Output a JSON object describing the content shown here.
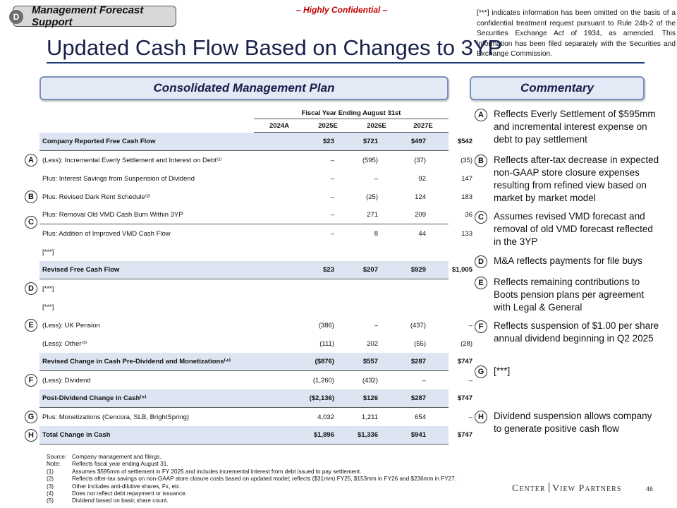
{
  "section_tag": {
    "letter": "D",
    "label": "Management Forecast Support"
  },
  "confidential": "– Highly Confidential –",
  "omission_note": "[***] indicates information has been omitted on the basis of a confidential treatment request pursuant to Rule 24b-2 of the Securities Exchange Act of 1934, as amended. This information has been filed separately with the Securities and Exchange Commission.",
  "title": "Updated Cash Flow Based on Changes to 3YP",
  "left_panel_header": "Consolidated Management Plan",
  "right_panel_header": "Commentary",
  "table": {
    "period_header": "Fiscal Year Ending August 31st",
    "years": [
      "2024A",
      "2025E",
      "2026E",
      "2027E"
    ],
    "rows": [
      {
        "label": "Company Reported Free Cash Flow",
        "values": [
          "$23",
          "$721",
          "$497",
          "$542"
        ]
      },
      {
        "label": "(Less): Incremental Everly Settlement and Interest on Debt⁽¹⁾",
        "badge": "A",
        "values": [
          "–",
          "(595)",
          "(37)",
          "(35)"
        ]
      },
      {
        "label": "Plus: Interest Savings from Suspension of Dividend",
        "values": [
          "–",
          "–",
          "92",
          "147"
        ]
      },
      {
        "label": "Plus: Revised Dark Rent Schedule⁽²⁾",
        "badge": "B",
        "values": [
          "–",
          "(25)",
          "124",
          "183"
        ]
      },
      {
        "label": "Plus: Removal Old VMD Cash Burn Within 3YP",
        "values": [
          "–",
          "271",
          "209",
          "36"
        ]
      },
      {
        "label": "Plus: Addition of Improved VMD Cash Flow",
        "values": [
          "–",
          "8",
          "44",
          "133"
        ]
      },
      {
        "label": "[***]",
        "values": [
          "",
          "",
          "",
          ""
        ]
      },
      {
        "label": "Revised Free Cash Flow",
        "values": [
          "$23",
          "$207",
          "$929",
          "$1,005"
        ]
      },
      {
        "label": "[***]",
        "badge": "D",
        "values": [
          "",
          "",
          "",
          ""
        ]
      },
      {
        "label": "[***]",
        "values": [
          "",
          "",
          "",
          ""
        ]
      },
      {
        "label": "(Less): UK Pension",
        "badge": "E",
        "values": [
          "(386)",
          "–",
          "(437)",
          "–"
        ]
      },
      {
        "label": "(Less): Other⁽³⁾",
        "values": [
          "(111)",
          "202",
          "(55)",
          "(28)"
        ]
      },
      {
        "label": "Revised Change in Cash Pre-Dividend and Monetizations⁽⁴⁾",
        "values": [
          "($876)",
          "$557",
          "$287",
          "$747"
        ]
      },
      {
        "label": "(Less): Dividend",
        "badge": "F",
        "values": [
          "(1,260)",
          "(432)",
          "–",
          "–"
        ]
      },
      {
        "label": "Post-Dividend Change in Cash⁽⁵⁾",
        "values": [
          "($2,136)",
          "$126",
          "$287",
          "$747"
        ]
      },
      {
        "label": "Plus: Monetizations (Cencora, SLB, BrightSpring)",
        "badge": "G",
        "values": [
          "4,032",
          "1,211",
          "654",
          "–"
        ]
      },
      {
        "label": "Total Change in Cash",
        "badge": "H",
        "values": [
          "$1,896",
          "$1,336",
          "$941",
          "$747"
        ]
      }
    ],
    "badge_c": "C"
  },
  "commentary": [
    {
      "letter": "A",
      "text": "Reflects Everly Settlement of $595mm and incremental interest expense on debt to pay settlement"
    },
    {
      "letter": "B",
      "text": "Reflects after-tax decrease in expected non-GAAP store closure expenses resulting from refined view based on market by market model"
    },
    {
      "letter": "C",
      "text": "Assumes revised VMD forecast and removal of old VMD forecast reflected in the 3YP"
    },
    {
      "letter": "D",
      "text": "M&A reflects payments for file buys"
    },
    {
      "letter": "E",
      "text": "Reflects remaining contributions to Boots pension plans per agreement with Legal & General"
    },
    {
      "letter": "F",
      "text": "Reflects suspension of $1.00 per share annual dividend beginning in Q2 2025"
    },
    {
      "letter": "G",
      "text": "[***]"
    },
    {
      "letter": "H",
      "text": "Dividend suspension allows company to generate positive cash flow"
    }
  ],
  "footnotes": [
    {
      "key": "Source:",
      "text": "Company management and filings."
    },
    {
      "key": "Note:",
      "text": "Reflects fiscal year ending August 31."
    },
    {
      "key": "(1)",
      "text": "Assumes $595mm of settlement in FY 2025 and includes incremental interest from debt issued to pay settlement."
    },
    {
      "key": "(2)",
      "text": "Reflects after-tax savings on non-GAAP store closure costs based on updated model; reflects ($31mm) FY25, $153mm in FY26 and $236mm in FY27."
    },
    {
      "key": "(3)",
      "text": "Other includes anti-dilutive shares, Fx, etc."
    },
    {
      "key": "(4)",
      "text": "Does not reflect debt repayment or issuance."
    },
    {
      "key": "(5)",
      "text": "Dividend based on basic share count."
    }
  ],
  "brand": {
    "left": "Center",
    "right": "View Partners"
  },
  "page_number": "46"
}
